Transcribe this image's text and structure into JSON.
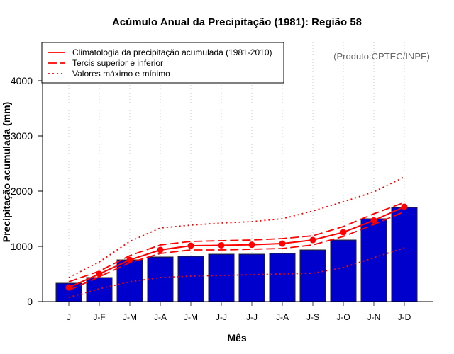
{
  "chart_data": {
    "type": "bar",
    "title": "Acúmulo Anual da Precipitação (1981): Região 58",
    "xlabel": "Mês",
    "ylabel": "Precipitação acumulada (mm)",
    "annotation": "(Produto:CPTEC/INPE)",
    "ylim": [
      0,
      4700
    ],
    "yticks": [
      0,
      1000,
      2000,
      3000,
      4000
    ],
    "ytick_labels": [
      "0",
      "1000",
      "2000",
      "3000",
      "4000"
    ],
    "categories": [
      "J",
      "J-F",
      "J-M",
      "J-A",
      "J-M",
      "J-J",
      "J-J",
      "J-A",
      "J-S",
      "J-O",
      "J-N",
      "J-D"
    ],
    "bars": {
      "name": "Precipitação 1981",
      "color": "#0000cc",
      "values": [
        333,
        436,
        756,
        808,
        820,
        859,
        859,
        872,
        936,
        1115,
        1500,
        1705
      ]
    },
    "series": [
      {
        "name": "Climatologia da precipitação acumulada (1981-2010)",
        "style": "solid",
        "markers": true,
        "color": "#ff0000",
        "values": [
          256,
          500,
          756,
          936,
          1013,
          1020,
          1030,
          1051,
          1115,
          1256,
          1470,
          1718
        ]
      },
      {
        "name": "Tercis superior e inferior",
        "style": "dashed",
        "color": "#ff0000",
        "values": [
          359,
          551,
          833,
          1026,
          1090,
          1103,
          1115,
          1141,
          1192,
          1359,
          1590,
          1795
        ]
      },
      {
        "name": "Tercis inferior",
        "style": "dashed",
        "legend": false,
        "color": "#ff0000",
        "values": [
          205,
          449,
          705,
          872,
          936,
          936,
          949,
          962,
          1026,
          1179,
          1397,
          1628
        ]
      },
      {
        "name": "Valores máximo e mínimo",
        "style": "dotted",
        "color": "#ff0000",
        "values": [
          436,
          718,
          1090,
          1333,
          1385,
          1423,
          1449,
          1500,
          1641,
          1808,
          1987,
          2256
        ]
      },
      {
        "name": "Mínimo",
        "style": "dotted",
        "legend": false,
        "color": "#ff0000",
        "values": [
          77,
          231,
          359,
          436,
          462,
          474,
          487,
          500,
          513,
          615,
          795,
          974
        ]
      }
    ],
    "legend_position": "top-left",
    "grid": "vertical-dotted"
  }
}
